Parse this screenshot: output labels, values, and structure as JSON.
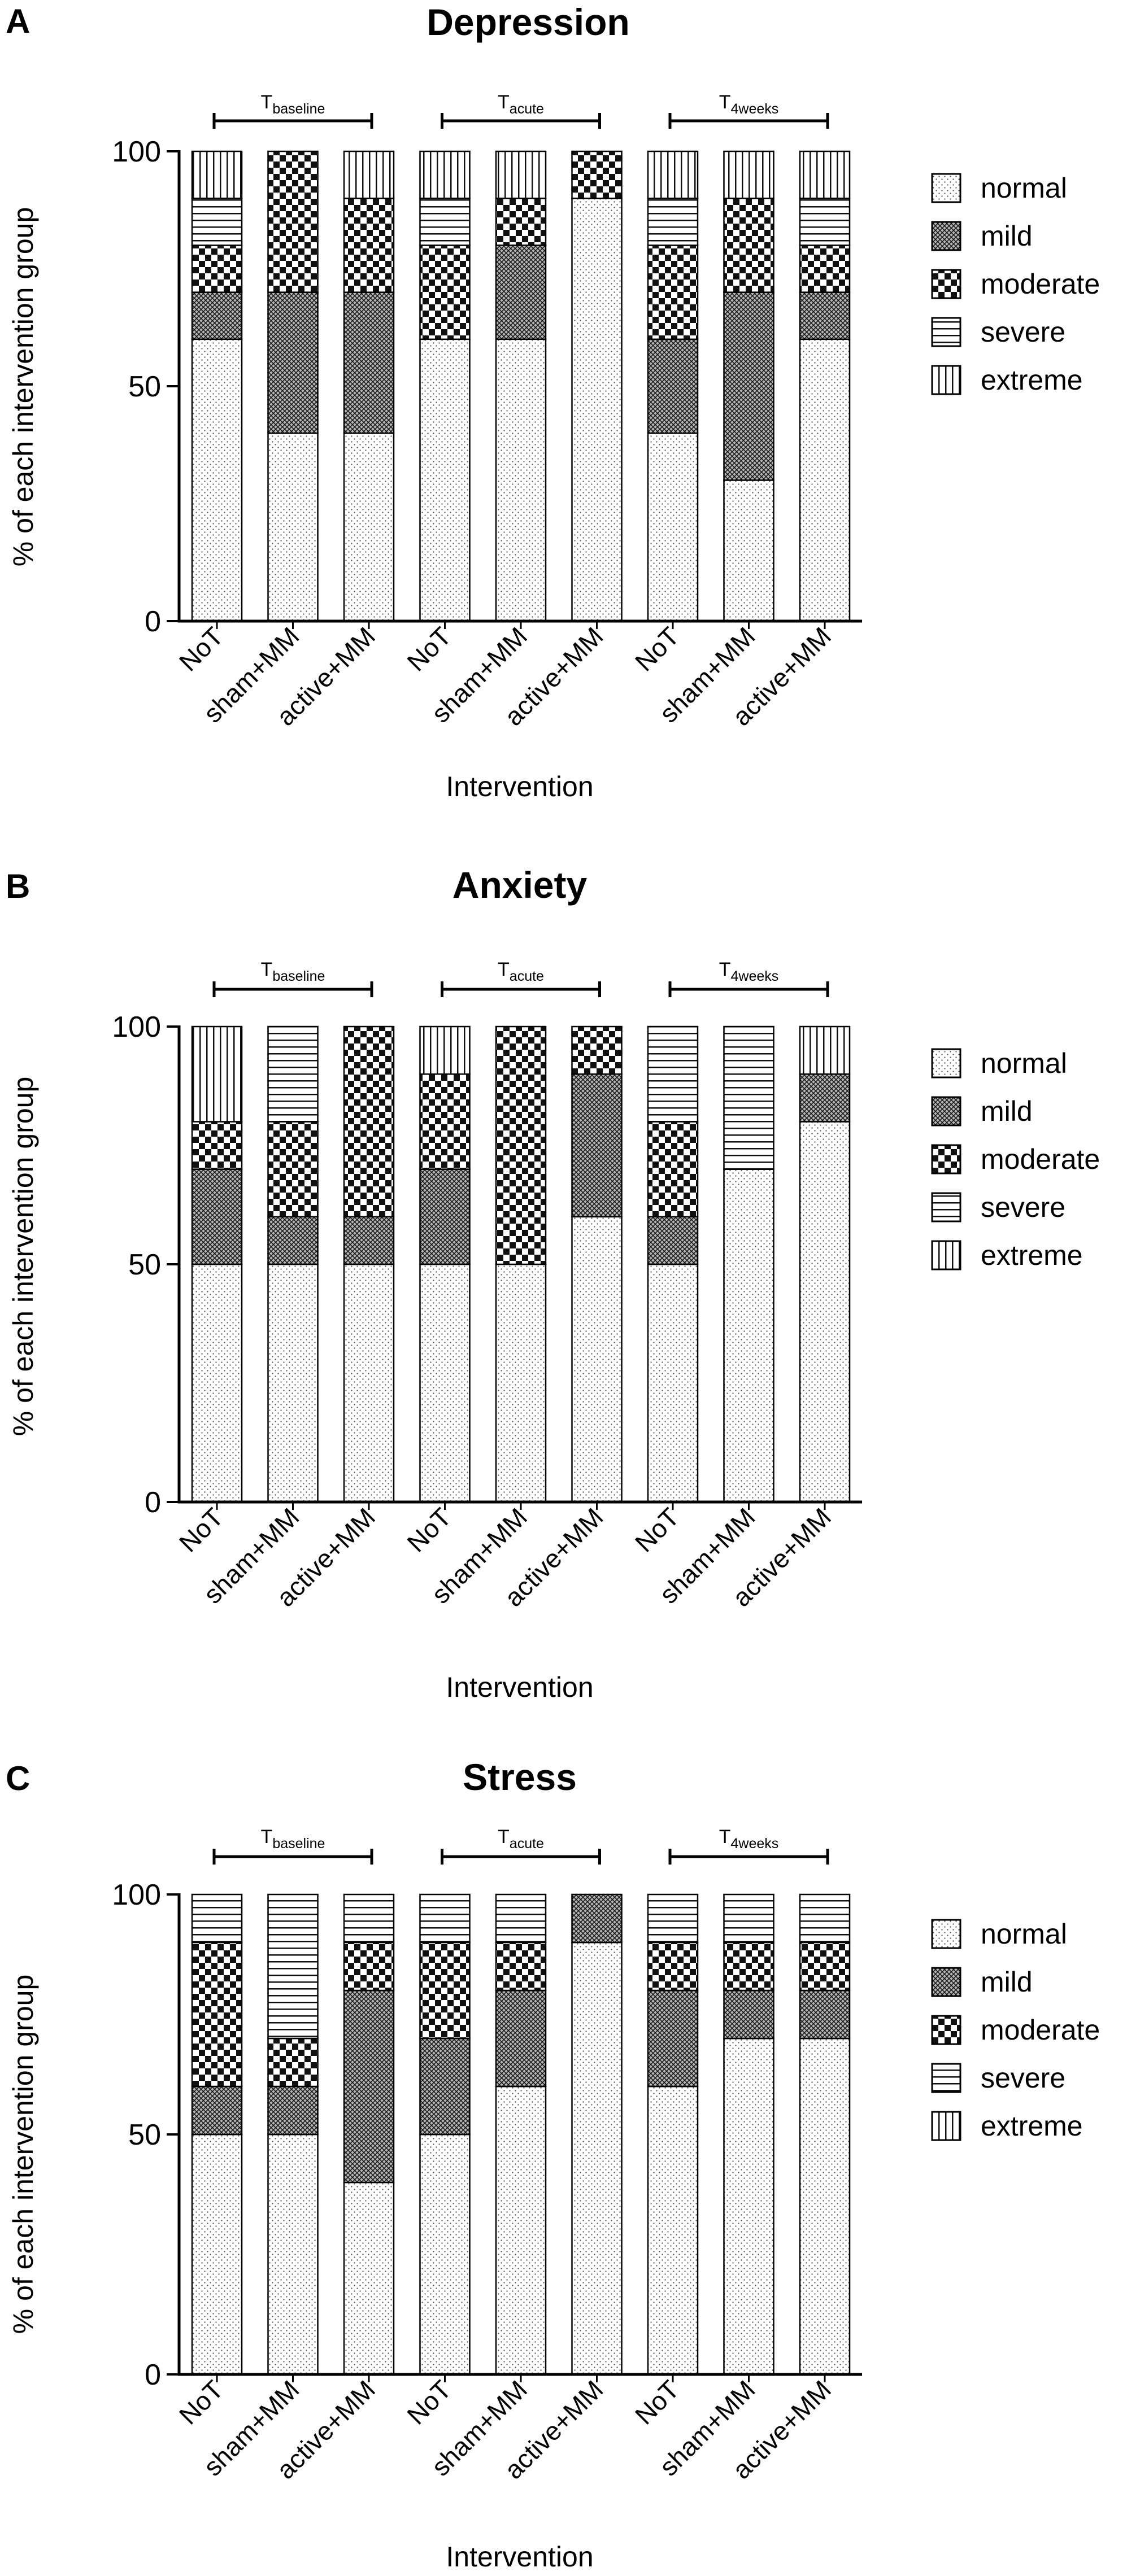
{
  "chart_data": [
    {
      "type": "bar",
      "stacked": true,
      "panel_label": "A",
      "title": "Depression",
      "xlabel": "Intervention",
      "ylabel": "% of each intervention group",
      "ylim": [
        0,
        100
      ],
      "yticks": [
        0,
        50,
        100
      ],
      "categories": [
        "NoT",
        "sham+MM",
        "active+MM",
        "NoT",
        "sham+MM",
        "active+MM",
        "NoT",
        "sham+MM",
        "active+MM"
      ],
      "timepoints": [
        {
          "label": "T",
          "sub": "baseline"
        },
        {
          "label": "T",
          "sub": "acute"
        },
        {
          "label": "T",
          "sub": "4weeks"
        }
      ],
      "series": [
        {
          "name": "normal",
          "values": [
            60,
            40,
            40,
            60,
            60,
            90,
            40,
            30,
            60
          ]
        },
        {
          "name": "mild",
          "values": [
            10,
            30,
            30,
            0,
            20,
            0,
            20,
            40,
            10
          ]
        },
        {
          "name": "moderate",
          "values": [
            10,
            30,
            20,
            20,
            10,
            10,
            20,
            20,
            10
          ]
        },
        {
          "name": "severe",
          "values": [
            10,
            0,
            0,
            10,
            0,
            0,
            10,
            0,
            10
          ]
        },
        {
          "name": "extreme",
          "values": [
            10,
            0,
            10,
            10,
            10,
            0,
            10,
            10,
            10
          ]
        }
      ]
    },
    {
      "type": "bar",
      "stacked": true,
      "panel_label": "B",
      "title": "Anxiety",
      "xlabel": "Intervention",
      "ylabel": "% of each intervention group",
      "ylim": [
        0,
        100
      ],
      "yticks": [
        0,
        50,
        100
      ],
      "categories": [
        "NoT",
        "sham+MM",
        "active+MM",
        "NoT",
        "sham+MM",
        "active+MM",
        "NoT",
        "sham+MM",
        "active+MM"
      ],
      "timepoints": [
        {
          "label": "T",
          "sub": "baseline"
        },
        {
          "label": "T",
          "sub": "acute"
        },
        {
          "label": "T",
          "sub": "4weeks"
        }
      ],
      "series": [
        {
          "name": "normal",
          "values": [
            50,
            50,
            50,
            50,
            50,
            60,
            50,
            70,
            80
          ]
        },
        {
          "name": "mild",
          "values": [
            20,
            10,
            10,
            20,
            0,
            30,
            10,
            0,
            10
          ]
        },
        {
          "name": "moderate",
          "values": [
            10,
            20,
            40,
            20,
            50,
            10,
            20,
            0,
            0
          ]
        },
        {
          "name": "severe",
          "values": [
            0,
            20,
            0,
            0,
            0,
            0,
            20,
            30,
            0
          ]
        },
        {
          "name": "extreme",
          "values": [
            20,
            0,
            0,
            10,
            0,
            0,
            0,
            0,
            10
          ]
        }
      ]
    },
    {
      "type": "bar",
      "stacked": true,
      "panel_label": "C",
      "title": "Stress",
      "xlabel": "Intervention",
      "ylabel": "% of each intervention group",
      "ylim": [
        0,
        100
      ],
      "yticks": [
        0,
        50,
        100
      ],
      "categories": [
        "NoT",
        "sham+MM",
        "active+MM",
        "NoT",
        "sham+MM",
        "active+MM",
        "NoT",
        "sham+MM",
        "active+MM"
      ],
      "timepoints": [
        {
          "label": "T",
          "sub": "baseline"
        },
        {
          "label": "T",
          "sub": "acute"
        },
        {
          "label": "T",
          "sub": "4weeks"
        }
      ],
      "series": [
        {
          "name": "normal",
          "values": [
            50,
            50,
            40,
            50,
            60,
            90,
            60,
            70,
            70
          ]
        },
        {
          "name": "mild",
          "values": [
            10,
            10,
            40,
            20,
            20,
            10,
            20,
            10,
            10
          ]
        },
        {
          "name": "moderate",
          "values": [
            30,
            10,
            10,
            20,
            10,
            0,
            10,
            10,
            10
          ]
        },
        {
          "name": "severe",
          "values": [
            10,
            30,
            10,
            10,
            10,
            0,
            10,
            10,
            10
          ]
        },
        {
          "name": "extreme",
          "values": [
            0,
            0,
            0,
            0,
            0,
            0,
            0,
            0,
            0
          ]
        }
      ]
    }
  ]
}
